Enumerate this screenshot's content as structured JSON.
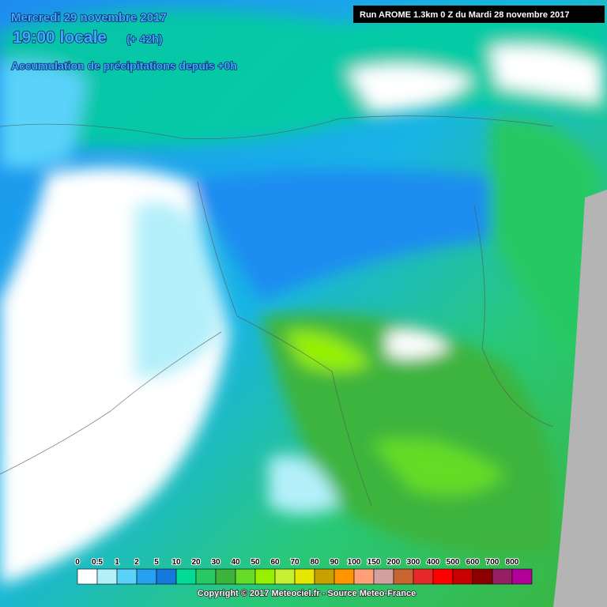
{
  "header": {
    "date": "Mercredi 29 novembre 2017",
    "time": "19:00 locale",
    "lead": "(+ 42h)",
    "subtitle": "Accumulation de précipitations depuis +0h"
  },
  "run": "Run AROME 1.3km 0 Z du Mardi 28 novembre 2017",
  "legend": {
    "items": [
      {
        "label": "0",
        "color": "#ffffff"
      },
      {
        "label": "0.5",
        "color": "#b4f0fa"
      },
      {
        "label": "1",
        "color": "#5ad2fa"
      },
      {
        "label": "2",
        "color": "#28a0f0"
      },
      {
        "label": "5",
        "color": "#1478dc"
      },
      {
        "label": "10",
        "color": "#00dc96"
      },
      {
        "label": "20",
        "color": "#28c864"
      },
      {
        "label": "30",
        "color": "#3cb43c"
      },
      {
        "label": "40",
        "color": "#64dc28"
      },
      {
        "label": "50",
        "color": "#96f000"
      },
      {
        "label": "60",
        "color": "#c8f032"
      },
      {
        "label": "70",
        "color": "#e6e600"
      },
      {
        "label": "80",
        "color": "#c8a000"
      },
      {
        "label": "90",
        "color": "#ff9600"
      },
      {
        "label": "100",
        "color": "#ffa078"
      },
      {
        "label": "150",
        "color": "#d2a0a0"
      },
      {
        "label": "200",
        "color": "#c86432"
      },
      {
        "label": "300",
        "color": "#e62828"
      },
      {
        "label": "400",
        "color": "#ff0000"
      },
      {
        "label": "500",
        "color": "#c80000"
      },
      {
        "label": "600",
        "color": "#8c0000"
      },
      {
        "label": "700",
        "color": "#961e64"
      },
      {
        "label": "800",
        "color": "#b4009b"
      }
    ]
  },
  "copyright": "Copyright © 2017 Meteociel.fr - Source Meteo-France"
}
